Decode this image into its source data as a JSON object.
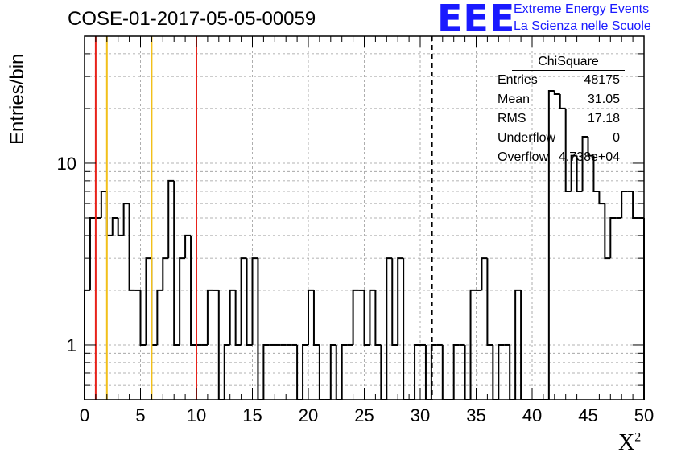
{
  "header": {
    "title": "COSE-01-2017-05-05-00059",
    "logo_mark": "EEE",
    "logo_line1": "Extreme Energy Events",
    "logo_line2": "La Scienza nelle Scuole",
    "brand_color": "#1a1aff"
  },
  "stats_box": {
    "title": "ChiSquare",
    "rows": [
      {
        "key": "Entries",
        "value": "48175"
      },
      {
        "key": "Mean",
        "value": "31.05"
      },
      {
        "key": "RMS",
        "value": "17.18"
      },
      {
        "key": "Underflow",
        "value": "0"
      },
      {
        "key": "Overflow",
        "value": "4.738e+04"
      }
    ]
  },
  "chart_data": {
    "type": "histogram",
    "ylabel": "Entries/bin",
    "xlabel": "X",
    "xlabel_sup": "2",
    "xlim": [
      0,
      50
    ],
    "ylim": [
      0.5,
      50
    ],
    "yscale": "log",
    "grid": true,
    "bin_width": 0.5,
    "x_ticks": [
      "0",
      "5",
      "10",
      "15",
      "20",
      "25",
      "30",
      "35",
      "40",
      "45",
      "50"
    ],
    "y_ticks": [
      {
        "value": 1,
        "label": "1"
      },
      {
        "value": 10,
        "label": "10"
      }
    ],
    "bin_values": [
      2,
      5,
      5,
      7,
      4,
      5,
      4,
      6,
      2,
      2,
      1,
      3,
      1,
      2,
      3,
      8,
      1,
      3,
      4,
      1,
      1,
      1,
      2,
      2,
      0,
      1,
      2,
      1,
      3,
      1,
      3,
      0,
      1,
      1,
      1,
      1,
      1,
      1,
      0,
      1,
      2,
      1,
      0,
      0,
      1,
      0,
      1,
      1,
      2,
      2,
      1,
      2,
      1,
      0,
      3,
      1,
      3,
      0,
      0,
      1,
      1,
      0,
      1,
      1,
      0,
      0,
      1,
      1,
      0,
      2,
      2,
      3,
      1,
      0,
      1,
      1,
      0,
      2,
      0,
      0,
      0,
      0,
      0,
      25,
      24,
      20,
      7,
      11,
      7,
      14,
      11,
      7,
      6,
      3,
      5,
      5,
      7,
      7,
      5,
      5
    ],
    "vertical_lines": [
      {
        "x": 1,
        "color": "#e8221a",
        "style": "solid"
      },
      {
        "x": 2,
        "color": "#f2c01a",
        "style": "solid"
      },
      {
        "x": 6,
        "color": "#f2c01a",
        "style": "solid"
      },
      {
        "x": 10,
        "color": "#e8221a",
        "style": "solid"
      },
      {
        "x": 31.05,
        "color": "#000000",
        "style": "dashed"
      }
    ]
  }
}
